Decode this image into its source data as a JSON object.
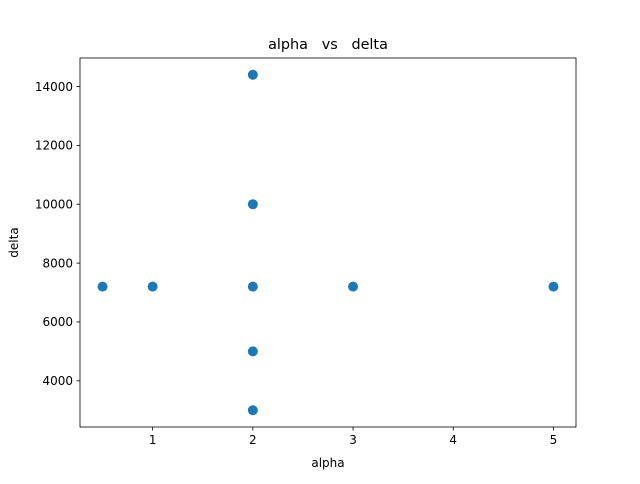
{
  "chart_data": {
    "type": "scatter",
    "title": "alpha   vs   delta",
    "xlabel": "alpha",
    "ylabel": "delta",
    "xlim": [
      0.275,
      5.225
    ],
    "ylim": [
      2430,
      14970
    ],
    "xticks": [
      1,
      2,
      3,
      4,
      5
    ],
    "yticks": [
      4000,
      6000,
      8000,
      10000,
      12000,
      14000
    ],
    "grid": false,
    "legend": false,
    "marker_color": "#1f77b4",
    "points": [
      {
        "x": 0.5,
        "y": 7200
      },
      {
        "x": 1,
        "y": 7200
      },
      {
        "x": 2,
        "y": 3000
      },
      {
        "x": 2,
        "y": 5000
      },
      {
        "x": 2,
        "y": 7200
      },
      {
        "x": 2,
        "y": 10000
      },
      {
        "x": 2,
        "y": 14400
      },
      {
        "x": 3,
        "y": 7200
      },
      {
        "x": 5,
        "y": 7200
      }
    ]
  }
}
